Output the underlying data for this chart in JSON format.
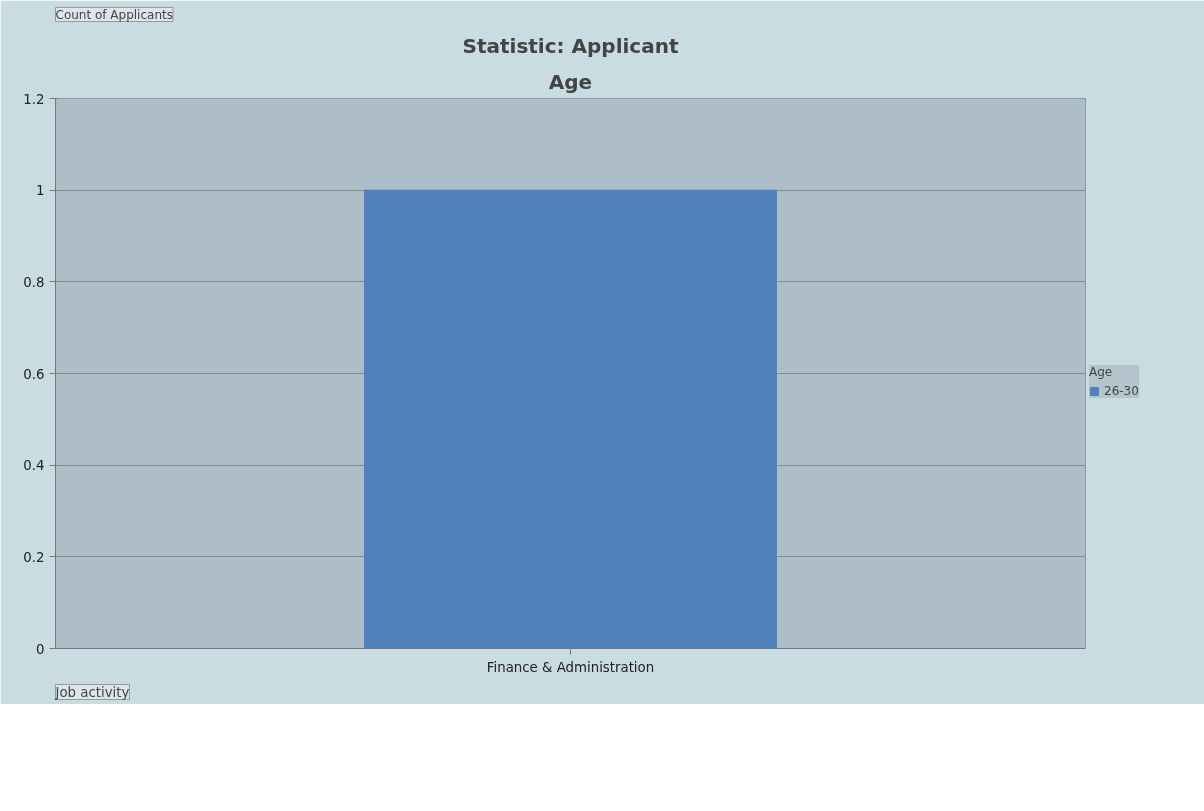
{
  "chart_data": {
    "type": "bar",
    "title": "Statistic: Applicant",
    "subtitle": "Age",
    "annotations": [
      "Count of Applicants"
    ],
    "xlabel": "Job activity",
    "legend_title": "Age",
    "categories": [
      "Finance & Administration"
    ],
    "series": [
      {
        "name": "26-30",
        "color": "#4f81bd",
        "values": [
          1
        ]
      }
    ],
    "ylim": [
      0,
      1.2
    ],
    "yticks": [
      0,
      0.2,
      0.4,
      0.6,
      0.8,
      1,
      1.2
    ],
    "grid": "y",
    "legend": "right"
  }
}
